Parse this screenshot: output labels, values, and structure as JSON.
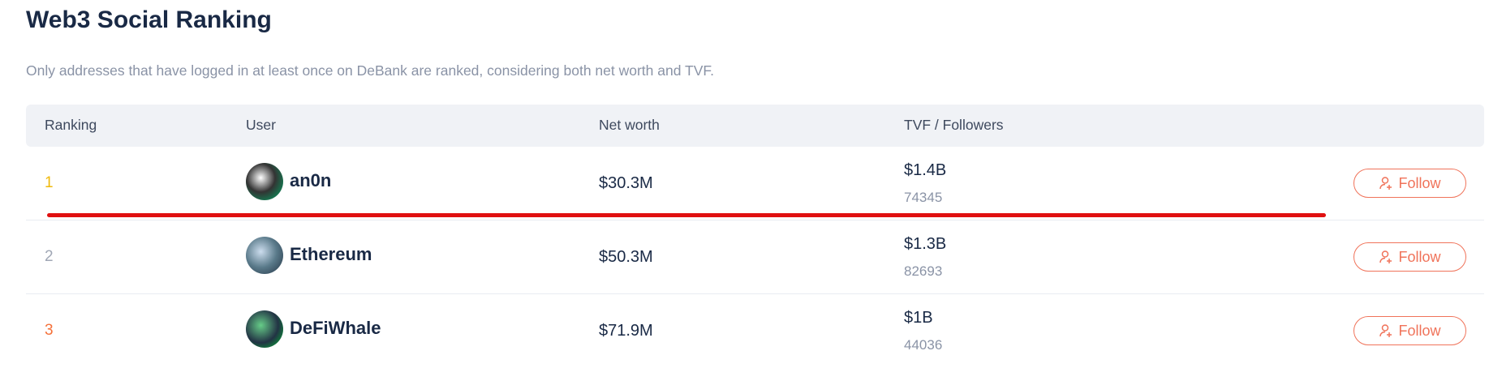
{
  "header": {
    "title": "Web3 Social Ranking",
    "subtitle": "Only addresses that have logged in at least once on DeBank are ranked, considering both net worth and TVF."
  },
  "table": {
    "columns": [
      "Ranking",
      "User",
      "Net worth",
      "TVF / Followers"
    ],
    "rows": [
      {
        "rank": "1",
        "user": "an0n",
        "net_worth": "$30.3M",
        "tvf": "$1.4B",
        "followers": "74345",
        "action": "Follow"
      },
      {
        "rank": "2",
        "user": "Ethereum",
        "net_worth": "$50.3M",
        "tvf": "$1.3B",
        "followers": "82693",
        "action": "Follow"
      },
      {
        "rank": "3",
        "user": "DeFiWhale",
        "net_worth": "$71.9M",
        "tvf": "$1B",
        "followers": "44036",
        "action": "Follow"
      }
    ]
  }
}
